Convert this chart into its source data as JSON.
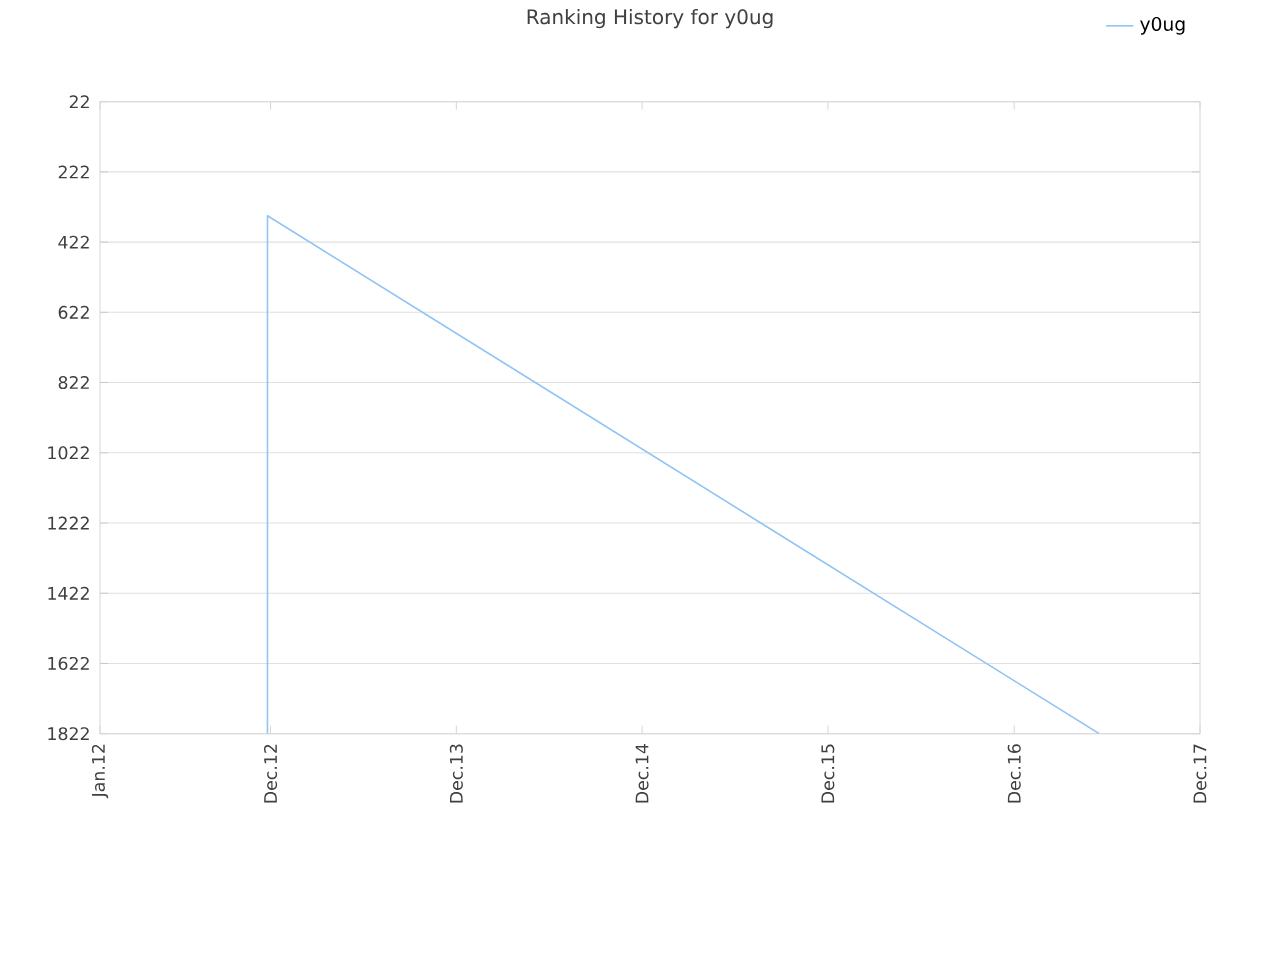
{
  "chart_data": {
    "type": "line",
    "title": "Ranking History for y0ug",
    "x": [
      "2012-11-25",
      "2012-11-25",
      "2017-05-17"
    ],
    "series": [
      {
        "name": "y0ug",
        "color": "#90c4f4",
        "values": [
          1822,
          347,
          1822
        ]
      }
    ],
    "xlim": [
      "2012-01-01",
      "2017-12-01"
    ],
    "xticks": [
      {
        "value": "2012-01-01",
        "label": "Jan.12"
      },
      {
        "value": "2012-12-01",
        "label": "Dec.12"
      },
      {
        "value": "2013-12-01",
        "label": "Dec.13"
      },
      {
        "value": "2014-12-01",
        "label": "Dec.14"
      },
      {
        "value": "2015-12-01",
        "label": "Dec.15"
      },
      {
        "value": "2016-12-01",
        "label": "Dec.16"
      },
      {
        "value": "2017-12-01",
        "label": "Dec.17"
      }
    ],
    "ylim": [
      1822,
      22
    ],
    "yticks": [
      22,
      222,
      422,
      622,
      822,
      1022,
      1222,
      1422,
      1622,
      1822
    ],
    "grid": "y",
    "legend": "top right",
    "marker": "none",
    "line_style": "solid"
  }
}
